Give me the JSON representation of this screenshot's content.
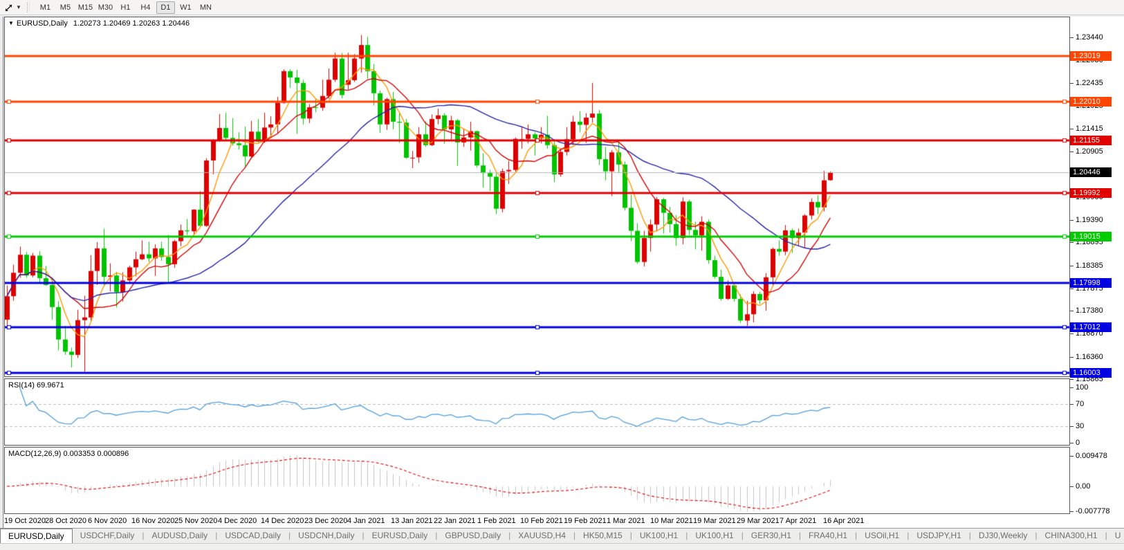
{
  "toolbar": {
    "timeframes": [
      "M1",
      "M5",
      "M15",
      "M30",
      "H1",
      "H4",
      "D1",
      "W1",
      "MN"
    ],
    "active_timeframe": "D1"
  },
  "chart_title": {
    "collapse_icon": "▼",
    "symbol": "EURUSD,Daily",
    "ohlc": "1.20273 1.20469 1.20263 1.20446"
  },
  "chart_data": {
    "type": "candlestick",
    "symbol": "EURUSD",
    "timeframe": "Daily",
    "last_bar": {
      "open": "1.20273",
      "high": "1.20469",
      "low": "1.20263",
      "close": "1.20446"
    },
    "y_range": [
      1.158,
      1.236
    ],
    "x_range": [
      "19 Oct 2020",
      "19 Apr 2021"
    ],
    "style": {
      "up_color": "#dd0000",
      "down_color": "#00c400",
      "background": "#ffffff"
    },
    "candles": [
      [
        1.1718,
        1.1794,
        1.1703,
        1.177
      ],
      [
        1.177,
        1.184,
        1.176,
        1.1822
      ],
      [
        1.1822,
        1.188,
        1.1811,
        1.1862
      ],
      [
        1.1862,
        1.1868,
        1.1811,
        1.1816
      ],
      [
        1.1816,
        1.1866,
        1.1812,
        1.186
      ],
      [
        1.186,
        1.187,
        1.18,
        1.181
      ],
      [
        1.181,
        1.1837,
        1.1793,
        1.1795
      ],
      [
        1.1795,
        1.1811,
        1.1718,
        1.1746
      ],
      [
        1.1746,
        1.1759,
        1.165,
        1.1674
      ],
      [
        1.1674,
        1.1704,
        1.164,
        1.1647
      ],
      [
        1.1647,
        1.1656,
        1.1612,
        1.164
      ],
      [
        1.164,
        1.174,
        1.1633,
        1.1717
      ],
      [
        1.1717,
        1.1771,
        1.1603,
        1.1723
      ],
      [
        1.1723,
        1.1861,
        1.1715,
        1.1826
      ],
      [
        1.1826,
        1.189,
        1.1795,
        1.1876
      ],
      [
        1.1876,
        1.192,
        1.1795,
        1.1813
      ],
      [
        1.1813,
        1.1843,
        1.1781,
        1.1816
      ],
      [
        1.1816,
        1.1824,
        1.1745,
        1.1779
      ],
      [
        1.1779,
        1.1823,
        1.1758,
        1.1805
      ],
      [
        1.1805,
        1.1838,
        1.1799,
        1.1834
      ],
      [
        1.1834,
        1.1869,
        1.1814,
        1.1852
      ],
      [
        1.1852,
        1.1894,
        1.185,
        1.1863
      ],
      [
        1.1863,
        1.1891,
        1.1846,
        1.1854
      ],
      [
        1.1854,
        1.1885,
        1.1815,
        1.1876
      ],
      [
        1.1876,
        1.1891,
        1.1849,
        1.1857
      ],
      [
        1.1857,
        1.1906,
        1.18,
        1.1841
      ],
      [
        1.1841,
        1.1895,
        1.1833,
        1.1892
      ],
      [
        1.1892,
        1.1929,
        1.1881,
        1.1916
      ],
      [
        1.1916,
        1.1941,
        1.1906,
        1.1914
      ],
      [
        1.1914,
        1.1963,
        1.1907,
        1.1962
      ],
      [
        1.1962,
        1.2003,
        1.1923,
        1.1926
      ],
      [
        1.1926,
        1.2076,
        1.1924,
        1.2071
      ],
      [
        1.2071,
        1.2118,
        1.204,
        1.2115
      ],
      [
        1.2115,
        1.2174,
        1.2113,
        1.2143
      ],
      [
        1.2143,
        1.2177,
        1.2115,
        1.2121
      ],
      [
        1.2121,
        1.2165,
        1.2104,
        1.2109
      ],
      [
        1.2109,
        1.2134,
        1.2095,
        1.2105
      ],
      [
        1.2105,
        1.2146,
        1.2058,
        1.208
      ],
      [
        1.208,
        1.2159,
        1.2076,
        1.2135
      ],
      [
        1.2135,
        1.2163,
        1.211,
        1.2113
      ],
      [
        1.2113,
        1.2177,
        1.211,
        1.2144
      ],
      [
        1.2144,
        1.2169,
        1.2123,
        1.2151
      ],
      [
        1.2151,
        1.2212,
        1.213,
        1.2199
      ],
      [
        1.2199,
        1.2273,
        1.2197,
        1.2269
      ],
      [
        1.2269,
        1.2273,
        1.2232,
        1.2255
      ],
      [
        1.2255,
        1.2272,
        1.213,
        1.2243
      ],
      [
        1.2243,
        1.225,
        1.2151,
        1.2164
      ],
      [
        1.2164,
        1.2196,
        1.2154,
        1.2189
      ],
      [
        1.2189,
        1.2208,
        1.2178,
        1.2188
      ],
      [
        1.2188,
        1.225,
        1.2181,
        1.2214
      ],
      [
        1.2214,
        1.2275,
        1.2208,
        1.225
      ],
      [
        1.225,
        1.231,
        1.2245,
        1.2297
      ],
      [
        1.2297,
        1.2309,
        1.2209,
        1.2216
      ],
      [
        1.2239,
        1.231,
        1.2228,
        1.2249
      ],
      [
        1.2249,
        1.2307,
        1.2245,
        1.2297
      ],
      [
        1.2297,
        1.2349,
        1.2266,
        1.2327
      ],
      [
        1.2327,
        1.2345,
        1.2252,
        1.2269
      ],
      [
        1.2269,
        1.2285,
        1.2193,
        1.222
      ],
      [
        1.222,
        1.2226,
        1.2132,
        1.2151
      ],
      [
        1.2151,
        1.221,
        1.2139,
        1.2207
      ],
      [
        1.2207,
        1.2223,
        1.214,
        1.2157
      ],
      [
        1.2157,
        1.2179,
        1.211,
        1.2155
      ],
      [
        1.2155,
        1.2163,
        1.2075,
        1.2077
      ],
      [
        1.2077,
        1.2092,
        1.2054,
        1.2078
      ],
      [
        1.2078,
        1.2145,
        1.2066,
        1.2129
      ],
      [
        1.2129,
        1.2158,
        1.2101,
        1.2105
      ],
      [
        1.2105,
        1.2173,
        1.2103,
        1.2163
      ],
      [
        1.2163,
        1.2186,
        1.2151,
        1.2171
      ],
      [
        1.2171,
        1.2176,
        1.2108,
        1.214
      ],
      [
        1.214,
        1.217,
        1.2118,
        1.216
      ],
      [
        1.216,
        1.2163,
        1.2059,
        1.2111
      ],
      [
        1.2111,
        1.2142,
        1.2101,
        1.2122
      ],
      [
        1.2122,
        1.2157,
        1.2093,
        1.2136
      ],
      [
        1.2136,
        1.2137,
        1.2056,
        1.206
      ],
      [
        1.206,
        1.2087,
        1.2011,
        1.2043
      ],
      [
        1.2043,
        1.205,
        1.2003,
        1.2035
      ],
      [
        1.2035,
        1.2043,
        1.1952,
        1.1964
      ],
      [
        1.1964,
        1.2053,
        1.1956,
        1.2047
      ],
      [
        1.2047,
        1.207,
        1.2019,
        1.205
      ],
      [
        1.205,
        1.2122,
        1.2046,
        1.2119
      ],
      [
        1.2119,
        1.2145,
        1.2097,
        1.2119
      ],
      [
        1.2119,
        1.2151,
        1.2109,
        1.2129
      ],
      [
        1.2129,
        1.2134,
        1.2082,
        1.212
      ],
      [
        1.212,
        1.2145,
        1.2109,
        1.2128
      ],
      [
        1.2128,
        1.217,
        1.2097,
        1.2105
      ],
      [
        1.2105,
        1.2113,
        1.2023,
        1.204
      ],
      [
        1.204,
        1.2098,
        1.2035,
        1.209
      ],
      [
        1.209,
        1.2145,
        1.2082,
        1.2118
      ],
      [
        1.2118,
        1.217,
        1.2105,
        1.2157
      ],
      [
        1.2157,
        1.218,
        1.2134,
        1.215
      ],
      [
        1.215,
        1.2176,
        1.211,
        1.2166
      ],
      [
        1.2166,
        1.2243,
        1.2155,
        1.2175
      ],
      [
        1.2175,
        1.2183,
        1.2061,
        1.2074
      ],
      [
        1.2074,
        1.2101,
        1.2027,
        1.2047
      ],
      [
        1.2047,
        1.2094,
        1.1992,
        1.2089
      ],
      [
        1.2089,
        1.2113,
        1.2043,
        1.2062
      ],
      [
        1.2062,
        1.2069,
        1.196,
        1.1966
      ],
      [
        1.1966,
        1.1995,
        1.1892,
        1.1915
      ],
      [
        1.1915,
        1.1932,
        1.1842,
        1.1846
      ],
      [
        1.1846,
        1.1915,
        1.1836,
        1.1899
      ],
      [
        1.1899,
        1.194,
        1.1869,
        1.1929
      ],
      [
        1.1929,
        1.199,
        1.1915,
        1.1985
      ],
      [
        1.1985,
        1.1988,
        1.1909,
        1.1955
      ],
      [
        1.1955,
        1.1968,
        1.1911,
        1.193
      ],
      [
        1.193,
        1.195,
        1.1882,
        1.1899
      ],
      [
        1.1899,
        1.1989,
        1.1885,
        1.198
      ],
      [
        1.198,
        1.1984,
        1.1906,
        1.1917
      ],
      [
        1.1917,
        1.1935,
        1.1874,
        1.1905
      ],
      [
        1.1905,
        1.1947,
        1.1871,
        1.1935
      ],
      [
        1.1935,
        1.194,
        1.1842,
        1.185
      ],
      [
        1.185,
        1.186,
        1.1809,
        1.1813
      ],
      [
        1.1813,
        1.1829,
        1.176,
        1.1764
      ],
      [
        1.1764,
        1.1805,
        1.1762,
        1.1794
      ],
      [
        1.1794,
        1.1795,
        1.1758,
        1.1764
      ],
      [
        1.1764,
        1.1774,
        1.1711,
        1.1716
      ],
      [
        1.1716,
        1.176,
        1.1704,
        1.173
      ],
      [
        1.173,
        1.1781,
        1.1712,
        1.1775
      ],
      [
        1.1775,
        1.178,
        1.1753,
        1.1761
      ],
      [
        1.1761,
        1.1821,
        1.1738,
        1.1812
      ],
      [
        1.1812,
        1.1878,
        1.1795,
        1.1875
      ],
      [
        1.1875,
        1.1894,
        1.186,
        1.1869
      ],
      [
        1.1869,
        1.1928,
        1.1861,
        1.1916
      ],
      [
        1.1916,
        1.192,
        1.1866,
        1.1899
      ],
      [
        1.1899,
        1.192,
        1.1882,
        1.1911
      ],
      [
        1.1911,
        1.1952,
        1.1877,
        1.1949
      ],
      [
        1.1949,
        1.1987,
        1.194,
        1.1979
      ],
      [
        1.1979,
        1.1994,
        1.1952,
        1.1967
      ],
      [
        1.1967,
        1.2048,
        1.1958,
        1.2027
      ],
      [
        1.20273,
        1.20469,
        1.20263,
        1.20446
      ]
    ],
    "moving_averages": [
      {
        "name": "SMA5",
        "period": 5,
        "color": "#ff9900"
      },
      {
        "name": "SMA10",
        "period": 10,
        "color": "#d40000"
      },
      {
        "name": "SMA30",
        "period": 30,
        "color": "#2424a8"
      }
    ],
    "hlines": [
      {
        "value": "1.23019",
        "price": 1.23019,
        "color": "#ff4500",
        "selected": false
      },
      {
        "value": "1.22010",
        "price": 1.2201,
        "color": "#ff4500",
        "selected": true
      },
      {
        "value": "1.21155",
        "price": 1.21155,
        "color": "#e00000",
        "selected": true
      },
      {
        "value": "1.19992",
        "price": 1.19992,
        "color": "#e00000",
        "selected": true
      },
      {
        "value": "1.19015",
        "price": 1.19015,
        "color": "#00cc00",
        "selected": true
      },
      {
        "value": "1.17998",
        "price": 1.17998,
        "color": "#0000e0",
        "selected": false
      },
      {
        "value": "1.17012",
        "price": 1.17012,
        "color": "#0000e0",
        "selected": true
      },
      {
        "value": "1.16003",
        "price": 1.16003,
        "color": "#0000e0",
        "selected": true
      }
    ],
    "current_price": {
      "value": "1.20446",
      "price": 1.20446,
      "badge_color": "#000000",
      "line_color": "#b4b4b4"
    },
    "y_ticks": [
      "1.23440",
      "1.22930",
      "1.22435",
      "1.21925",
      "1.21415",
      "1.20905",
      "1.19900",
      "1.19390",
      "1.18895",
      "1.18385",
      "1.17875",
      "1.17380",
      "1.16870",
      "1.16360",
      "1.15865"
    ],
    "x_labels": [
      "19 Oct 2020",
      "28 Oct 2020",
      "6 Nov 2020",
      "16 Nov 2020",
      "25 Nov 2020",
      "4 Dec 2020",
      "14 Dec 2020",
      "23 Dec 2020",
      "4 Jan 2021",
      "13 Jan 2021",
      "22 Jan 2021",
      "1 Feb 2021",
      "10 Feb 2021",
      "19 Feb 2021",
      "1 Mar 2021",
      "10 Mar 2021",
      "19 Mar 2021",
      "29 Mar 2021",
      "7 Apr 2021",
      "16 Apr 2021"
    ],
    "rsi": {
      "label": "RSI(14) 69.9671",
      "period": 14,
      "value": 69.9671,
      "levels": [
        "100",
        "70",
        "30",
        "0"
      ],
      "level_values": [
        100,
        70,
        30,
        0
      ],
      "line_color": "#4f9edd"
    },
    "macd": {
      "label": "MACD(12,26,9) 0.003353 0.000896",
      "fast": 12,
      "slow": 26,
      "signal_period": 9,
      "main_value": 0.003353,
      "signal_value": 0.000896,
      "axis_labels": [
        "0.009478",
        "0.00",
        "-0.007778"
      ],
      "axis_values": [
        0.009478,
        0,
        -0.007778
      ],
      "hist_color": "#c4c4c4",
      "signal_color": "#e00000"
    }
  },
  "tabs": {
    "items": [
      "EURUSD,Daily",
      "USDCHF,Daily",
      "AUDUSD,Daily",
      "USDCAD,Daily",
      "USDCNH,Daily",
      "EURUSD,Daily",
      "GBPUSD,Daily",
      "XAUUSD,H4",
      "HK50,M15",
      "UK100,H1",
      "UK100,H1",
      "GER30,H1",
      "FRA40,H1",
      "USOil,H1",
      "USDJPY,H1",
      "DJ30,Weekly",
      "CHINA300,H1",
      "U"
    ],
    "active_index": 0,
    "scroll_left_icon": "◄",
    "scroll_right_icon": "►"
  }
}
